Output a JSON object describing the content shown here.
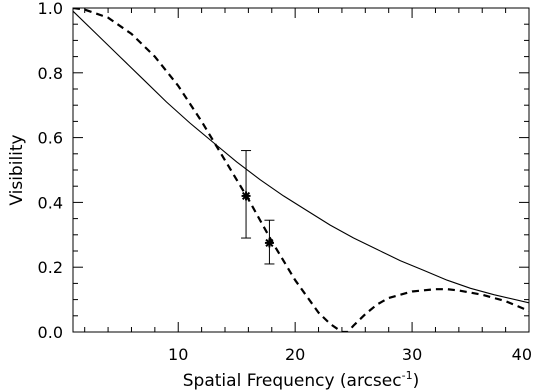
{
  "chart_data": {
    "type": "line",
    "xlabel": "Spatial Frequency (arcsec",
    "xlabel_sup": "-1",
    "xlabel_close": ")",
    "ylabel": "Visibility",
    "xlim": [
      1,
      40
    ],
    "ylim": [
      0.0,
      1.0
    ],
    "grid": false,
    "x_ticks": [
      {
        "value": 10,
        "label": "10"
      },
      {
        "value": 20,
        "label": "20"
      },
      {
        "value": 30,
        "label": "30"
      },
      {
        "value": 40,
        "label": "40"
      }
    ],
    "y_ticks": [
      {
        "value": 0.0,
        "label": "0.0"
      },
      {
        "value": 0.2,
        "label": "0.2"
      },
      {
        "value": 0.4,
        "label": "0.4"
      },
      {
        "value": 0.6,
        "label": "0.6"
      },
      {
        "value": 0.8,
        "label": "0.8"
      },
      {
        "value": 1.0,
        "label": "1.0"
      }
    ],
    "series": [
      {
        "style": "solid",
        "x": [
          1,
          3,
          5,
          7,
          9,
          11,
          13,
          15,
          17,
          19,
          21,
          23,
          25,
          27,
          29,
          31,
          33,
          35,
          37,
          40
        ],
        "y": [
          0.99,
          0.92,
          0.85,
          0.78,
          0.71,
          0.645,
          0.585,
          0.525,
          0.47,
          0.42,
          0.375,
          0.33,
          0.29,
          0.255,
          0.22,
          0.19,
          0.16,
          0.135,
          0.115,
          0.09
        ]
      },
      {
        "style": "dashed",
        "x": [
          1,
          2,
          4,
          6,
          8,
          10,
          12,
          14,
          16,
          18,
          20,
          22,
          23,
          24,
          24.5,
          25,
          26,
          27,
          28,
          30,
          32,
          33,
          34,
          36,
          38,
          40
        ],
        "y": [
          1.0,
          0.995,
          0.97,
          0.92,
          0.85,
          0.76,
          0.65,
          0.53,
          0.41,
          0.28,
          0.16,
          0.06,
          0.025,
          0.0,
          0.0,
          0.02,
          0.055,
          0.085,
          0.105,
          0.125,
          0.132,
          0.132,
          0.128,
          0.115,
          0.095,
          0.065
        ]
      }
    ],
    "points": [
      {
        "x": 15.8,
        "y": 0.42,
        "err_low": 0.29,
        "err_high": 0.56
      },
      {
        "x": 17.8,
        "y": 0.275,
        "err_low": 0.21,
        "err_high": 0.345
      }
    ]
  }
}
